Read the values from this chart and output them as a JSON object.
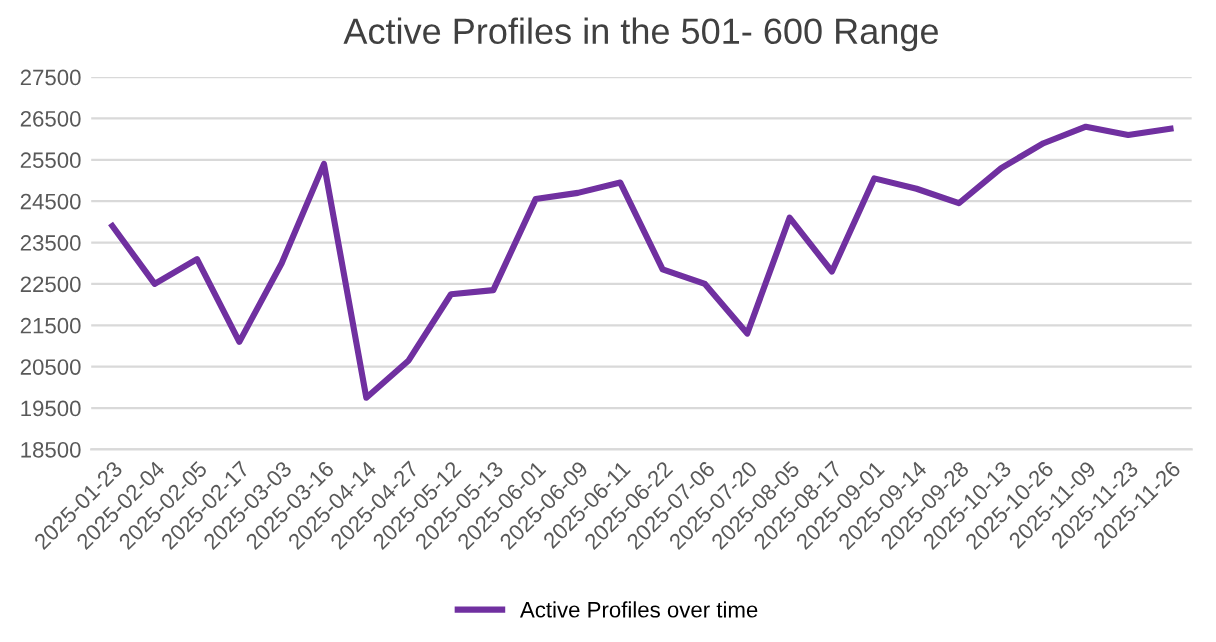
{
  "chart_data": {
    "type": "line",
    "title": "Active Profiles in the 501- 600 Range",
    "categories": [
      "2025-01-23",
      "2025-02-04",
      "2025-02-05",
      "2025-02-17",
      "2025-03-03",
      "2025-03-16",
      "2025-04-14",
      "2025-04-27",
      "2025-05-12",
      "2025-05-13",
      "2025-06-01",
      "2025-06-09",
      "2025-06-11",
      "2025-06-22",
      "2025-07-06",
      "2025-07-20",
      "2025-08-05",
      "2025-08-17",
      "2025-09-01",
      "2025-09-14",
      "2025-09-28",
      "2025-10-13",
      "2025-10-26",
      "2025-11-09",
      "2025-11-23",
      "2025-11-26"
    ],
    "series": [
      {
        "name": "Active Profiles over time",
        "color": "#7030a0",
        "values": [
          23900,
          22500,
          23100,
          21100,
          23000,
          25400,
          19750,
          20650,
          22250,
          22350,
          24550,
          24700,
          24950,
          22850,
          22500,
          21300,
          24100,
          22800,
          25050,
          24800,
          24450,
          25300,
          25900,
          26300,
          26100,
          26250
        ]
      }
    ],
    "ylim": [
      18500,
      27500
    ],
    "yticks": [
      18500,
      19500,
      20500,
      21500,
      22500,
      23500,
      24500,
      25500,
      26500,
      27500
    ],
    "grid": "y",
    "legend": "bottom",
    "marker": "none",
    "line_style": "solid"
  }
}
